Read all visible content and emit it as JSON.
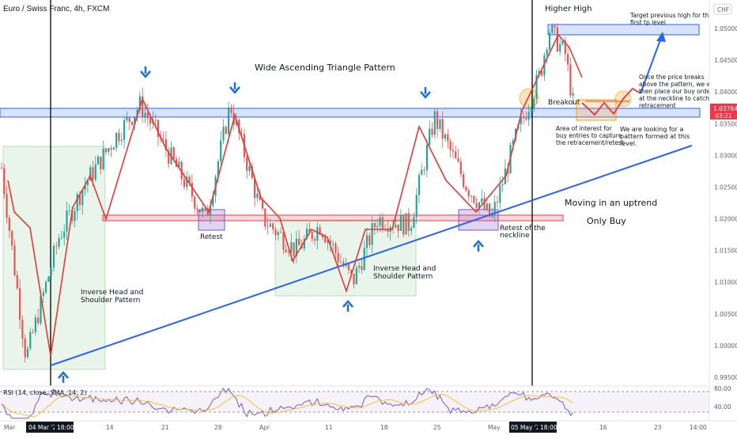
{
  "symbol_title": "Euro / Swiss Franc, 4h, FXCM",
  "currency": "CHF",
  "price_axis": {
    "ticks": [
      "1.05000",
      "1.04500",
      "1.04000",
      "1.03500",
      "1.03000",
      "1.02500",
      "1.02000",
      "1.01500",
      "1.01000",
      "1.00500",
      "1.00000",
      "0.99500"
    ],
    "current_price": "1.03764",
    "countdown": "03:21",
    "colors": {
      "current": "#f23645"
    }
  },
  "time_axis": {
    "labels": [
      "Mar",
      "04 Mar '22",
      "18:00",
      "14",
      "21",
      "28",
      "Apr",
      "11",
      "18",
      "25",
      "May",
      "05 May '22",
      "18:00",
      "16",
      "23",
      "14:00"
    ]
  },
  "annotations": {
    "higher_high": "Higher High",
    "target": "Target previous high for the first tp level",
    "triangle": "Wide Ascending Triangle Pattern",
    "breakout": "Breakout",
    "once_breaks": "Once the price breaks above the pattern, we will then place our buy orders at the neckline to catch the retracement",
    "area_interest": "Area of interest for buy entries to capture the retracement/retest",
    "looking": "We are looking for a pattern formed at this level.",
    "uptrend": "Moving in an uptrend",
    "only_buy": "Only Buy",
    "retest": "Retest",
    "retest_neckline": "Retest of the neckline",
    "ihs1": "Inverse Head and Shoulder Pattern",
    "ihs2": "Inverse Head and Shoulder Pattern"
  },
  "rsi": {
    "label": "RSI (14, close, SMA, 14, 2)",
    "ticks": [
      "80.00",
      "40.00"
    ]
  },
  "colors": {
    "zone_blue": "#2962ff",
    "zone_red": "#f23645",
    "trend": "#2962ff",
    "zigzag": "#e53935",
    "bull": "#26a69a",
    "bear": "#ef5350",
    "green_box": "#4caf50",
    "purple_box": "#7e57c2",
    "orange_box": "#ff9800",
    "rsi_line": "#7e57c2",
    "rsi_ma": "#fbc02d"
  },
  "chart_data": {
    "type": "candlestick",
    "instrument": "EUR/CHF",
    "timeframe": "4h",
    "x_range": [
      "2022-03-01",
      "2022-05-25"
    ],
    "y_range": [
      0.993,
      1.0525
    ],
    "price_path": [
      {
        "date": "2022-03-01",
        "price": 1.028
      },
      {
        "date": "2022-03-04",
        "price": 0.998
      },
      {
        "date": "2022-03-08",
        "price": 1.017
      },
      {
        "date": "2022-03-11",
        "price": 1.025
      },
      {
        "date": "2022-03-15",
        "price": 1.033
      },
      {
        "date": "2022-03-18",
        "price": 1.038
      },
      {
        "date": "2022-03-22",
        "price": 1.029
      },
      {
        "date": "2022-03-26",
        "price": 1.02
      },
      {
        "date": "2022-03-29",
        "price": 1.038
      },
      {
        "date": "2022-04-02",
        "price": 1.02
      },
      {
        "date": "2022-04-06",
        "price": 1.015
      },
      {
        "date": "2022-04-09",
        "price": 1.019
      },
      {
        "date": "2022-04-13",
        "price": 1.01
      },
      {
        "date": "2022-04-16",
        "price": 1.02
      },
      {
        "date": "2022-04-20",
        "price": 1.019
      },
      {
        "date": "2022-04-23",
        "price": 1.036
      },
      {
        "date": "2022-04-27",
        "price": 1.025
      },
      {
        "date": "2022-04-30",
        "price": 1.02
      },
      {
        "date": "2022-05-03",
        "price": 1.033
      },
      {
        "date": "2022-05-06",
        "price": 1.043
      },
      {
        "date": "2022-05-07",
        "price": 1.05
      },
      {
        "date": "2022-05-09",
        "price": 1.046
      },
      {
        "date": "2022-05-10",
        "price": 1.038
      }
    ],
    "levels": {
      "resistance_zone": [
        1.0363,
        1.0372
      ],
      "neckline_zone": [
        1.0195,
        1.0205
      ],
      "target_zone": [
        1.0495,
        1.0508
      ]
    },
    "rsi_levels": [
      80,
      40
    ]
  }
}
